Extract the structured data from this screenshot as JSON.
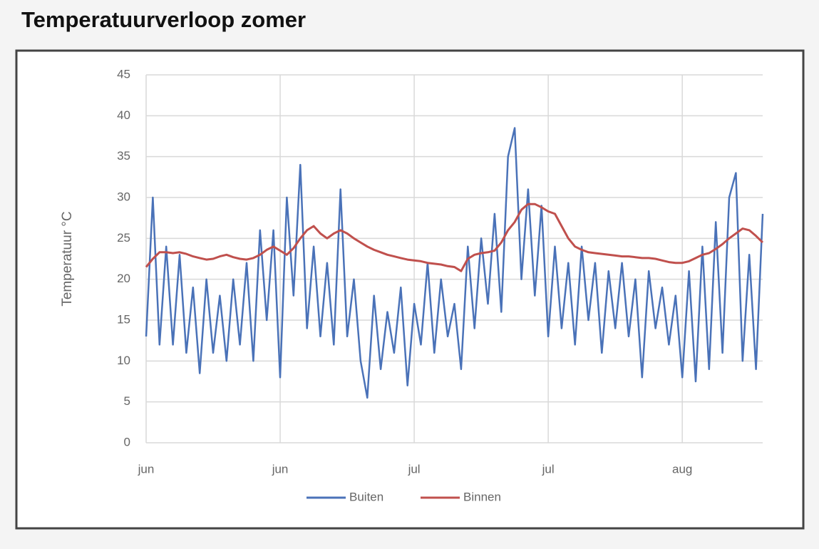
{
  "chart_data": {
    "type": "line",
    "title": "Temperatuurverloop zomer",
    "ylabel": "Temperatuur °C",
    "categories": [
      "jun",
      null,
      null,
      null,
      null,
      null,
      null,
      null,
      null,
      null,
      null,
      null,
      null,
      null,
      null,
      null,
      null,
      null,
      null,
      null,
      "jun",
      null,
      null,
      null,
      null,
      null,
      null,
      null,
      null,
      null,
      null,
      null,
      null,
      null,
      null,
      null,
      null,
      null,
      null,
      null,
      "jul",
      null,
      null,
      null,
      null,
      null,
      null,
      null,
      null,
      null,
      null,
      null,
      null,
      null,
      null,
      null,
      null,
      null,
      null,
      null,
      "jul",
      null,
      null,
      null,
      null,
      null,
      null,
      null,
      null,
      null,
      null,
      null,
      null,
      null,
      null,
      null,
      null,
      null,
      null,
      null,
      "aug",
      null,
      null,
      null,
      null,
      null,
      null,
      null,
      null,
      null,
      null,
      null,
      null
    ],
    "series": [
      {
        "name": "Buiten",
        "color": "#4a72b8",
        "values": [
          13,
          30,
          12,
          24,
          12,
          23,
          11,
          19,
          8.5,
          20,
          11,
          18,
          10,
          20,
          12,
          22,
          10,
          26,
          15,
          26,
          8,
          30,
          18,
          34,
          14,
          24,
          13,
          22,
          12,
          31,
          13,
          20,
          10,
          5.5,
          18,
          9,
          16,
          11,
          19,
          7,
          17,
          12,
          22,
          11,
          20,
          13,
          17,
          9,
          24,
          14,
          25,
          17,
          28,
          16,
          35,
          38.5,
          20,
          31,
          18,
          29,
          13,
          24,
          14,
          22,
          12,
          24,
          15,
          22,
          11,
          21,
          14,
          22,
          13,
          20,
          8,
          21,
          14,
          19,
          12,
          18,
          8,
          21,
          7.5,
          24,
          9,
          27,
          11,
          30,
          33,
          10,
          23,
          9,
          28
        ]
      },
      {
        "name": "Binnen",
        "color": "#c0504d",
        "values": [
          21.5,
          22.5,
          23.3,
          23.3,
          23.2,
          23.3,
          23.1,
          22.8,
          22.6,
          22.4,
          22.5,
          22.8,
          23,
          22.7,
          22.5,
          22.4,
          22.6,
          23,
          23.6,
          24,
          23.5,
          23,
          23.8,
          25,
          26,
          26.5,
          25.6,
          25,
          25.6,
          26,
          25.6,
          25,
          24.5,
          24,
          23.6,
          23.3,
          23,
          22.8,
          22.6,
          22.4,
          22.3,
          22.2,
          22,
          21.9,
          21.8,
          21.6,
          21.5,
          21,
          22.5,
          23,
          23.2,
          23.3,
          23.5,
          24.5,
          26,
          27,
          28.5,
          29.2,
          29.2,
          28.8,
          28.3,
          28,
          26.5,
          25,
          24,
          23.6,
          23.3,
          23.2,
          23.1,
          23,
          22.9,
          22.8,
          22.8,
          22.7,
          22.6,
          22.6,
          22.5,
          22.3,
          22.1,
          22,
          22,
          22.2,
          22.6,
          23,
          23.2,
          23.7,
          24.3,
          25,
          25.6,
          26.2,
          26,
          25.3,
          24.5
        ]
      }
    ],
    "ylim": [
      0,
      45
    ],
    "yticks": [
      0,
      5,
      10,
      15,
      20,
      25,
      30,
      35,
      40,
      45
    ],
    "grid": true,
    "legend": "bottom"
  }
}
